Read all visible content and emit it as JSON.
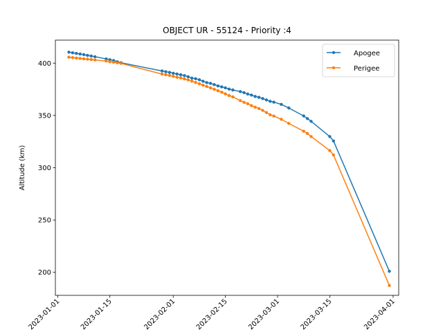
{
  "chart_data": {
    "type": "line",
    "title": "OBJECT UR - 55124 - Priority :4",
    "xlabel": "",
    "ylabel": "Altitude (km)",
    "xlim": [
      "2022-12-31T09:00",
      "2023-04-02T12:00"
    ],
    "ylim": [
      178,
      422
    ],
    "yticks": [
      200,
      250,
      300,
      350,
      400
    ],
    "xticks": [
      "2023-01-01",
      "2023-01-15",
      "2023-02-01",
      "2023-02-15",
      "2023-03-01",
      "2023-03-15",
      "2023-04-01"
    ],
    "grid": false,
    "legend_position": "top-right",
    "series": [
      {
        "name": "Apogee",
        "color": "#1f77b4",
        "x": [
          "2023-01-04",
          "2023-01-05",
          "2023-01-06",
          "2023-01-07",
          "2023-01-08",
          "2023-01-09",
          "2023-01-10",
          "2023-01-11",
          "2023-01-14",
          "2023-01-15",
          "2023-01-16",
          "2023-01-17",
          "2023-01-18",
          "2023-01-29",
          "2023-01-30",
          "2023-01-31",
          "2023-02-01",
          "2023-02-02",
          "2023-02-03",
          "2023-02-04",
          "2023-02-05",
          "2023-02-06",
          "2023-02-07",
          "2023-02-08",
          "2023-02-09",
          "2023-02-10",
          "2023-02-11",
          "2023-02-12",
          "2023-02-13",
          "2023-02-14",
          "2023-02-15",
          "2023-02-16",
          "2023-02-17",
          "2023-02-19",
          "2023-02-20",
          "2023-02-21",
          "2023-02-22",
          "2023-02-23",
          "2023-02-24",
          "2023-02-25",
          "2023-02-26",
          "2023-02-27",
          "2023-02-28",
          "2023-03-02",
          "2023-03-04",
          "2023-03-08",
          "2023-03-09",
          "2023-03-10",
          "2023-03-15",
          "2023-03-16",
          "2023-03-31"
        ],
        "y": [
          410.5,
          409.9,
          409.3,
          408.7,
          408.1,
          407.4,
          406.8,
          406.1,
          404.0,
          403.3,
          402.5,
          401.3,
          400.4,
          392.5,
          391.8,
          391.1,
          390.3,
          389.6,
          388.9,
          388.1,
          387.0,
          385.6,
          385.1,
          384.1,
          382.7,
          381.4,
          380.7,
          379.5,
          378.2,
          377.3,
          376.4,
          375.2,
          374.3,
          372.8,
          371.8,
          370.5,
          369.4,
          368.2,
          367.3,
          366.1,
          364.8,
          363.5,
          362.7,
          360.6,
          357.1,
          349.5,
          347.0,
          344.4,
          329.8,
          325.6,
          201.0
        ]
      },
      {
        "name": "Perigee",
        "color": "#ff7f0e",
        "x": [
          "2023-01-04",
          "2023-01-05",
          "2023-01-06",
          "2023-01-07",
          "2023-01-08",
          "2023-01-09",
          "2023-01-10",
          "2023-01-11",
          "2023-01-14",
          "2023-01-15",
          "2023-01-16",
          "2023-01-17",
          "2023-01-18",
          "2023-01-29",
          "2023-01-30",
          "2023-01-31",
          "2023-02-01",
          "2023-02-02",
          "2023-02-03",
          "2023-02-04",
          "2023-02-05",
          "2023-02-06",
          "2023-02-07",
          "2023-02-08",
          "2023-02-09",
          "2023-02-10",
          "2023-02-11",
          "2023-02-12",
          "2023-02-13",
          "2023-02-14",
          "2023-02-15",
          "2023-02-16",
          "2023-02-17",
          "2023-02-19",
          "2023-02-20",
          "2023-02-21",
          "2023-02-22",
          "2023-02-23",
          "2023-02-24",
          "2023-02-25",
          "2023-02-26",
          "2023-02-27",
          "2023-02-28",
          "2023-03-02",
          "2023-03-04",
          "2023-03-08",
          "2023-03-09",
          "2023-03-10",
          "2023-03-15",
          "2023-03-16",
          "2023-03-31"
        ],
        "y": [
          405.7,
          405.3,
          404.9,
          404.5,
          404.1,
          403.8,
          403.4,
          403.0,
          402.0,
          401.3,
          400.9,
          400.3,
          399.8,
          389.5,
          388.9,
          388.2,
          387.4,
          386.5,
          385.9,
          384.9,
          384.0,
          382.8,
          381.5,
          380.2,
          378.9,
          377.6,
          376.3,
          375.0,
          373.6,
          372.2,
          370.6,
          369.0,
          367.7,
          364.2,
          362.5,
          361.2,
          359.4,
          357.9,
          356.6,
          354.8,
          352.8,
          350.6,
          349.4,
          346.3,
          342.4,
          334.9,
          332.8,
          329.8,
          316.4,
          312.2,
          187.4
        ]
      }
    ]
  }
}
